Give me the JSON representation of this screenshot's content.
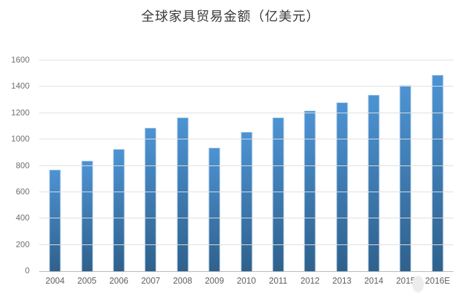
{
  "chart_data": {
    "type": "bar",
    "title": "全球家具贸易金额（亿美元）",
    "categories": [
      "2004",
      "2005",
      "2006",
      "2007",
      "2008",
      "2009",
      "2010",
      "2011",
      "2012",
      "2013",
      "2014",
      "2015",
      "2016E"
    ],
    "values": [
      770,
      840,
      930,
      1090,
      1170,
      940,
      1060,
      1170,
      1220,
      1280,
      1340,
      1410,
      1490
    ],
    "xlabel": "",
    "ylabel": "",
    "ylim": [
      0,
      1600
    ],
    "yticks": [
      0,
      200,
      400,
      600,
      800,
      1000,
      1200,
      1400,
      1600
    ],
    "grid": "horizontal",
    "legend_position": "none",
    "colors": {
      "bar_gradient_top": "#4d93d3",
      "bar_gradient_bottom": "#2f618c",
      "bar_border": "#bdd6ee",
      "gridline": "#dedede",
      "axis_line": "#b7b7b7",
      "y_tick_label": "#6e6e6e",
      "x_tick_label": "#5f5f5f",
      "title": "#3a3a3a",
      "background": "#ffffff",
      "watermark_blob": "#ececec"
    }
  }
}
